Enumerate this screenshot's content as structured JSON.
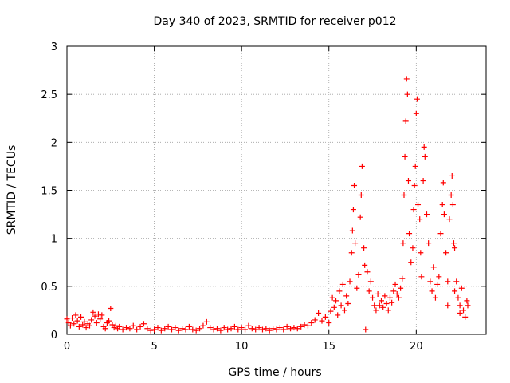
{
  "chart_data": {
    "type": "scatter",
    "title": "Day 340 of 2023, SRMTID for receiver p012",
    "xlabel": "GPS time / hours",
    "ylabel": "SRMTID / TECUs",
    "xlim": [
      0,
      24
    ],
    "ylim": [
      0,
      3
    ],
    "xticks": [
      0,
      5,
      10,
      15,
      20
    ],
    "xtick_labels": [
      "0",
      "5",
      "10",
      "15",
      "20"
    ],
    "yticks": [
      0,
      0.5,
      1,
      1.5,
      2,
      2.5,
      3
    ],
    "ytick_labels": [
      "0",
      "0.5",
      "1",
      "1.5",
      "2",
      "2.5",
      "3"
    ],
    "grid": true,
    "marker": "+",
    "color": "#ff0000",
    "series": [
      {
        "name": "SRMTID",
        "points": [
          [
            0.0,
            0.16
          ],
          [
            0.1,
            0.12
          ],
          [
            0.2,
            0.09
          ],
          [
            0.3,
            0.17
          ],
          [
            0.4,
            0.11
          ],
          [
            0.5,
            0.2
          ],
          [
            0.6,
            0.14
          ],
          [
            0.7,
            0.08
          ],
          [
            0.8,
            0.18
          ],
          [
            0.9,
            0.1
          ],
          [
            1.0,
            0.13
          ],
          [
            1.1,
            0.07
          ],
          [
            1.2,
            0.11
          ],
          [
            1.3,
            0.09
          ],
          [
            1.4,
            0.15
          ],
          [
            1.5,
            0.23
          ],
          [
            1.6,
            0.19
          ],
          [
            1.7,
            0.12
          ],
          [
            1.8,
            0.21
          ],
          [
            1.9,
            0.16
          ],
          [
            2.0,
            0.2
          ],
          [
            2.1,
            0.08
          ],
          [
            2.2,
            0.06
          ],
          [
            2.3,
            0.12
          ],
          [
            2.4,
            0.14
          ],
          [
            2.5,
            0.27
          ],
          [
            2.6,
            0.1
          ],
          [
            2.7,
            0.07
          ],
          [
            2.8,
            0.09
          ],
          [
            2.9,
            0.06
          ],
          [
            3.0,
            0.08
          ],
          [
            3.2,
            0.05
          ],
          [
            3.4,
            0.07
          ],
          [
            3.6,
            0.06
          ],
          [
            3.8,
            0.09
          ],
          [
            4.0,
            0.05
          ],
          [
            4.2,
            0.08
          ],
          [
            4.4,
            0.11
          ],
          [
            4.6,
            0.06
          ],
          [
            4.8,
            0.04
          ],
          [
            5.0,
            0.05
          ],
          [
            5.2,
            0.07
          ],
          [
            5.4,
            0.04
          ],
          [
            5.6,
            0.06
          ],
          [
            5.8,
            0.08
          ],
          [
            6.0,
            0.05
          ],
          [
            6.2,
            0.07
          ],
          [
            6.4,
            0.04
          ],
          [
            6.6,
            0.06
          ],
          [
            6.8,
            0.05
          ],
          [
            7.0,
            0.08
          ],
          [
            7.2,
            0.05
          ],
          [
            7.4,
            0.04
          ],
          [
            7.6,
            0.06
          ],
          [
            7.8,
            0.09
          ],
          [
            8.0,
            0.13
          ],
          [
            8.2,
            0.07
          ],
          [
            8.4,
            0.05
          ],
          [
            8.6,
            0.06
          ],
          [
            8.8,
            0.04
          ],
          [
            9.0,
            0.07
          ],
          [
            9.2,
            0.05
          ],
          [
            9.4,
            0.06
          ],
          [
            9.6,
            0.08
          ],
          [
            9.8,
            0.05
          ],
          [
            10.0,
            0.07
          ],
          [
            10.2,
            0.05
          ],
          [
            10.4,
            0.09
          ],
          [
            10.6,
            0.06
          ],
          [
            10.8,
            0.05
          ],
          [
            11.0,
            0.07
          ],
          [
            11.2,
            0.05
          ],
          [
            11.4,
            0.06
          ],
          [
            11.6,
            0.04
          ],
          [
            11.8,
            0.06
          ],
          [
            12.0,
            0.05
          ],
          [
            12.2,
            0.07
          ],
          [
            12.4,
            0.05
          ],
          [
            12.6,
            0.08
          ],
          [
            12.8,
            0.06
          ],
          [
            13.0,
            0.07
          ],
          [
            13.2,
            0.06
          ],
          [
            13.4,
            0.08
          ],
          [
            13.6,
            0.1
          ],
          [
            13.8,
            0.09
          ],
          [
            14.0,
            0.12
          ],
          [
            14.2,
            0.15
          ],
          [
            14.4,
            0.22
          ],
          [
            14.6,
            0.14
          ],
          [
            14.8,
            0.18
          ],
          [
            15.0,
            0.12
          ],
          [
            15.1,
            0.24
          ],
          [
            15.2,
            0.38
          ],
          [
            15.3,
            0.28
          ],
          [
            15.4,
            0.35
          ],
          [
            15.5,
            0.2
          ],
          [
            15.6,
            0.45
          ],
          [
            15.7,
            0.3
          ],
          [
            15.8,
            0.52
          ],
          [
            15.9,
            0.25
          ],
          [
            16.0,
            0.4
          ],
          [
            16.1,
            0.32
          ],
          [
            16.2,
            0.55
          ],
          [
            16.3,
            0.85
          ],
          [
            16.35,
            1.08
          ],
          [
            16.4,
            1.3
          ],
          [
            16.45,
            1.55
          ],
          [
            16.5,
            0.95
          ],
          [
            16.6,
            0.48
          ],
          [
            16.7,
            0.62
          ],
          [
            16.8,
            1.22
          ],
          [
            16.85,
            1.45
          ],
          [
            16.9,
            1.75
          ],
          [
            17.0,
            0.9
          ],
          [
            17.05,
            0.72
          ],
          [
            17.1,
            0.05
          ],
          [
            17.2,
            0.65
          ],
          [
            17.3,
            0.45
          ],
          [
            17.4,
            0.55
          ],
          [
            17.5,
            0.38
          ],
          [
            17.6,
            0.3
          ],
          [
            17.7,
            0.25
          ],
          [
            17.8,
            0.42
          ],
          [
            17.9,
            0.3
          ],
          [
            18.0,
            0.35
          ],
          [
            18.1,
            0.28
          ],
          [
            18.2,
            0.4
          ],
          [
            18.3,
            0.32
          ],
          [
            18.4,
            0.25
          ],
          [
            18.5,
            0.38
          ],
          [
            18.6,
            0.33
          ],
          [
            18.7,
            0.45
          ],
          [
            18.8,
            0.52
          ],
          [
            18.9,
            0.42
          ],
          [
            19.0,
            0.38
          ],
          [
            19.1,
            0.48
          ],
          [
            19.2,
            0.58
          ],
          [
            19.25,
            0.95
          ],
          [
            19.3,
            1.45
          ],
          [
            19.35,
            1.85
          ],
          [
            19.4,
            2.22
          ],
          [
            19.45,
            2.66
          ],
          [
            19.5,
            2.5
          ],
          [
            19.55,
            1.6
          ],
          [
            19.6,
            1.05
          ],
          [
            19.7,
            0.75
          ],
          [
            19.8,
            0.9
          ],
          [
            19.85,
            1.3
          ],
          [
            19.9,
            1.55
          ],
          [
            19.95,
            1.75
          ],
          [
            20.0,
            2.3
          ],
          [
            20.05,
            2.45
          ],
          [
            20.1,
            1.35
          ],
          [
            20.2,
            1.2
          ],
          [
            20.25,
            0.85
          ],
          [
            20.3,
            0.6
          ],
          [
            20.4,
            1.6
          ],
          [
            20.45,
            1.95
          ],
          [
            20.5,
            1.85
          ],
          [
            20.6,
            1.25
          ],
          [
            20.7,
            0.95
          ],
          [
            20.8,
            0.55
          ],
          [
            20.9,
            0.45
          ],
          [
            21.0,
            0.7
          ],
          [
            21.1,
            0.38
          ],
          [
            21.2,
            0.52
          ],
          [
            21.3,
            0.6
          ],
          [
            21.4,
            1.05
          ],
          [
            21.5,
            1.35
          ],
          [
            21.55,
            1.58
          ],
          [
            21.6,
            1.25
          ],
          [
            21.7,
            0.85
          ],
          [
            21.8,
            0.55
          ],
          [
            21.9,
            1.2
          ],
          [
            22.0,
            1.45
          ],
          [
            22.05,
            1.65
          ],
          [
            22.1,
            1.35
          ],
          [
            22.15,
            0.95
          ],
          [
            22.2,
            0.9
          ],
          [
            22.3,
            0.55
          ],
          [
            22.4,
            0.38
          ],
          [
            22.5,
            0.3
          ],
          [
            22.6,
            0.48
          ],
          [
            22.7,
            0.25
          ],
          [
            22.8,
            0.18
          ],
          [
            22.9,
            0.35
          ],
          [
            22.95,
            0.3
          ],
          [
            22.5,
            0.22
          ],
          [
            22.2,
            0.45
          ],
          [
            21.8,
            0.3
          ]
        ]
      }
    ]
  }
}
